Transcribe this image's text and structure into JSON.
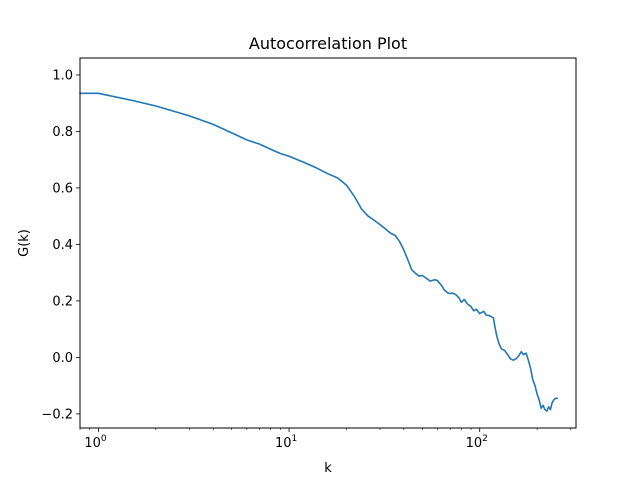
{
  "chart_data": {
    "type": "line",
    "title": "Autocorrelation Plot",
    "xlabel": "k",
    "ylabel": "G(k)",
    "xscale": "log",
    "xlim": [
      0.8,
      320
    ],
    "ylim": [
      -0.25,
      1.06
    ],
    "grid": false,
    "x_ticks": [
      {
        "value": 1,
        "base": "10",
        "exp": "0"
      },
      {
        "value": 10,
        "base": "10",
        "exp": "1"
      },
      {
        "value": 100,
        "base": "10",
        "exp": "2"
      }
    ],
    "y_ticks": [
      {
        "value": -0.2,
        "label": "−0.2"
      },
      {
        "value": 0.0,
        "label": "0.0"
      },
      {
        "value": 0.2,
        "label": "0.2"
      },
      {
        "value": 0.4,
        "label": "0.4"
      },
      {
        "value": 0.6,
        "label": "0.6"
      },
      {
        "value": 0.8,
        "label": "0.8"
      },
      {
        "value": 1.0,
        "label": "1.0"
      }
    ],
    "series": [
      {
        "color": "#1f77b4",
        "x": [
          0.8,
          1,
          1.5,
          2,
          3,
          4,
          5,
          6,
          7,
          8,
          9,
          10,
          12,
          14,
          16,
          18,
          20,
          22,
          24,
          26,
          28,
          30,
          32,
          34,
          36,
          38,
          40,
          42,
          44,
          46,
          48,
          50,
          52,
          55,
          58,
          60,
          63,
          65,
          68,
          70,
          72,
          75,
          78,
          80,
          83,
          86,
          90,
          93,
          96,
          100,
          105,
          108,
          112,
          118,
          120,
          123,
          126,
          130,
          135,
          140,
          145,
          150,
          155,
          160,
          165,
          170,
          175,
          180,
          185,
          190,
          195,
          200,
          205,
          210,
          215,
          220,
          225,
          230,
          235,
          240,
          245,
          250,
          255
        ],
        "y": [
          0.935,
          0.935,
          0.91,
          0.89,
          0.855,
          0.825,
          0.795,
          0.77,
          0.755,
          0.737,
          0.722,
          0.712,
          0.69,
          0.67,
          0.65,
          0.635,
          0.61,
          0.57,
          0.525,
          0.5,
          0.485,
          0.47,
          0.455,
          0.44,
          0.432,
          0.41,
          0.38,
          0.345,
          0.31,
          0.298,
          0.288,
          0.29,
          0.282,
          0.27,
          0.275,
          0.272,
          0.255,
          0.24,
          0.228,
          0.226,
          0.228,
          0.222,
          0.21,
          0.195,
          0.205,
          0.19,
          0.18,
          0.165,
          0.17,
          0.155,
          0.163,
          0.15,
          0.148,
          0.14,
          0.11,
          0.075,
          0.05,
          0.03,
          0.025,
          0.01,
          -0.005,
          -0.01,
          -0.005,
          0.005,
          0.02,
          0.01,
          0.015,
          -0.01,
          -0.04,
          -0.08,
          -0.1,
          -0.13,
          -0.15,
          -0.18,
          -0.17,
          -0.185,
          -0.19,
          -0.175,
          -0.185,
          -0.16,
          -0.15,
          -0.145,
          -0.145
        ]
      }
    ]
  }
}
